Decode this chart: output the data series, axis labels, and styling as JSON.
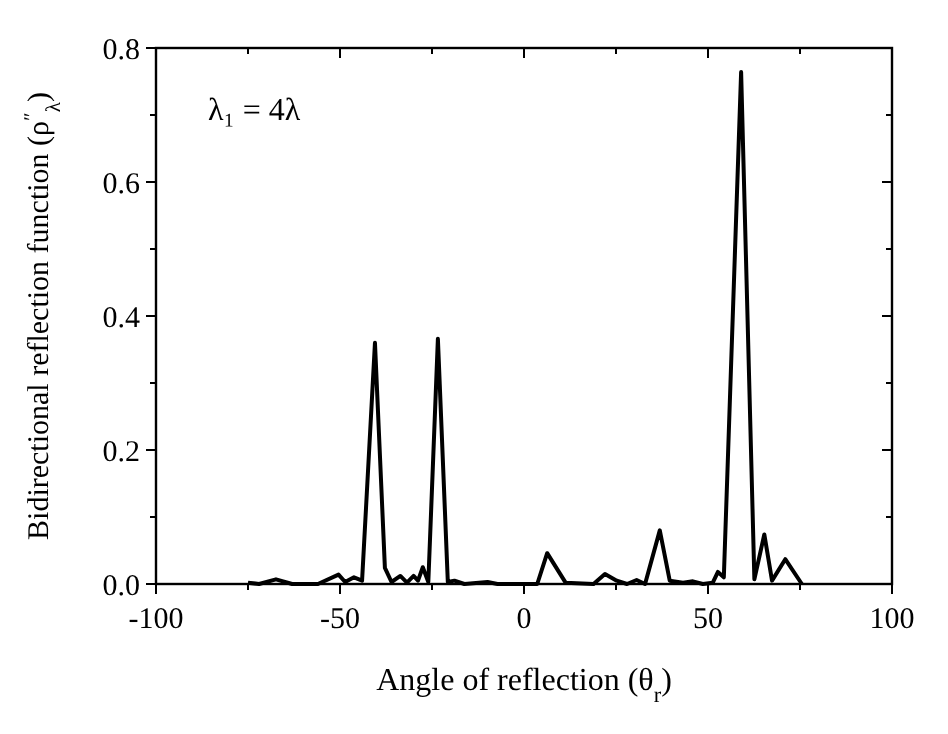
{
  "chart_data": {
    "type": "line",
    "xlabel": "Angle of reflection (θ$_{r}$)",
    "ylabel": "Bidirectional reflection function (ρ$^{″}$$_{λ}$)",
    "annotations": [
      "λ₁ = 4λ"
    ],
    "x": [
      -75,
      -72,
      -67.4,
      -63,
      -56,
      -50.4,
      -48.6,
      -46.2,
      -44,
      -40.5,
      -37.8,
      -36,
      -33.6,
      -31.8,
      -30,
      -28.8,
      -27.5,
      -26,
      -23.4,
      -20.7,
      -18.9,
      -16.2,
      -9.9,
      -7.2,
      3.6,
      6.3,
      11.3,
      18.9,
      22,
      25.2,
      28,
      30.6,
      32.9,
      36.9,
      39.6,
      43.2,
      45.9,
      48.6,
      51.3,
      52.7,
      54.3,
      59,
      62.6,
      65.3,
      67.4,
      71,
      75.5
    ],
    "series": [
      {
        "color": "#000000",
        "values": [
          0.002,
          0,
          0.007,
          0,
          0,
          0.014,
          0.003,
          0.01,
          0.005,
          0.36,
          0.024,
          0.003,
          0.012,
          0.002,
          0.012,
          0.005,
          0.025,
          0.003,
          0.366,
          0.003,
          0.005,
          0,
          0.003,
          0,
          0,
          0.046,
          0.002,
          0,
          0.015,
          0.005,
          0,
          0.006,
          0,
          0.08,
          0.005,
          0.002,
          0.004,
          0,
          0.002,
          0.018,
          0.01,
          0.764,
          0.007,
          0.074,
          0.005,
          0.037,
          0
        ]
      }
    ],
    "xlim": [
      -100,
      100
    ],
    "xticks": [
      -100,
      {
        "value": -75,
        "label": null
      },
      -50,
      {
        "value": -25,
        "label": null
      },
      0,
      {
        "value": 25,
        "label": null
      },
      50,
      {
        "value": 75,
        "label": null
      },
      100
    ],
    "ylim": [
      0,
      0.8
    ],
    "yticks": [
      "0.0",
      {
        "value": 0.1,
        "label": null
      },
      0.2,
      {
        "value": 0.3,
        "label": null
      },
      0.4,
      {
        "value": 0.5,
        "label": null
      },
      0.6,
      {
        "value": 0.7,
        "label": null
      },
      0.8
    ],
    "marker": "none",
    "line_style": "solid"
  }
}
